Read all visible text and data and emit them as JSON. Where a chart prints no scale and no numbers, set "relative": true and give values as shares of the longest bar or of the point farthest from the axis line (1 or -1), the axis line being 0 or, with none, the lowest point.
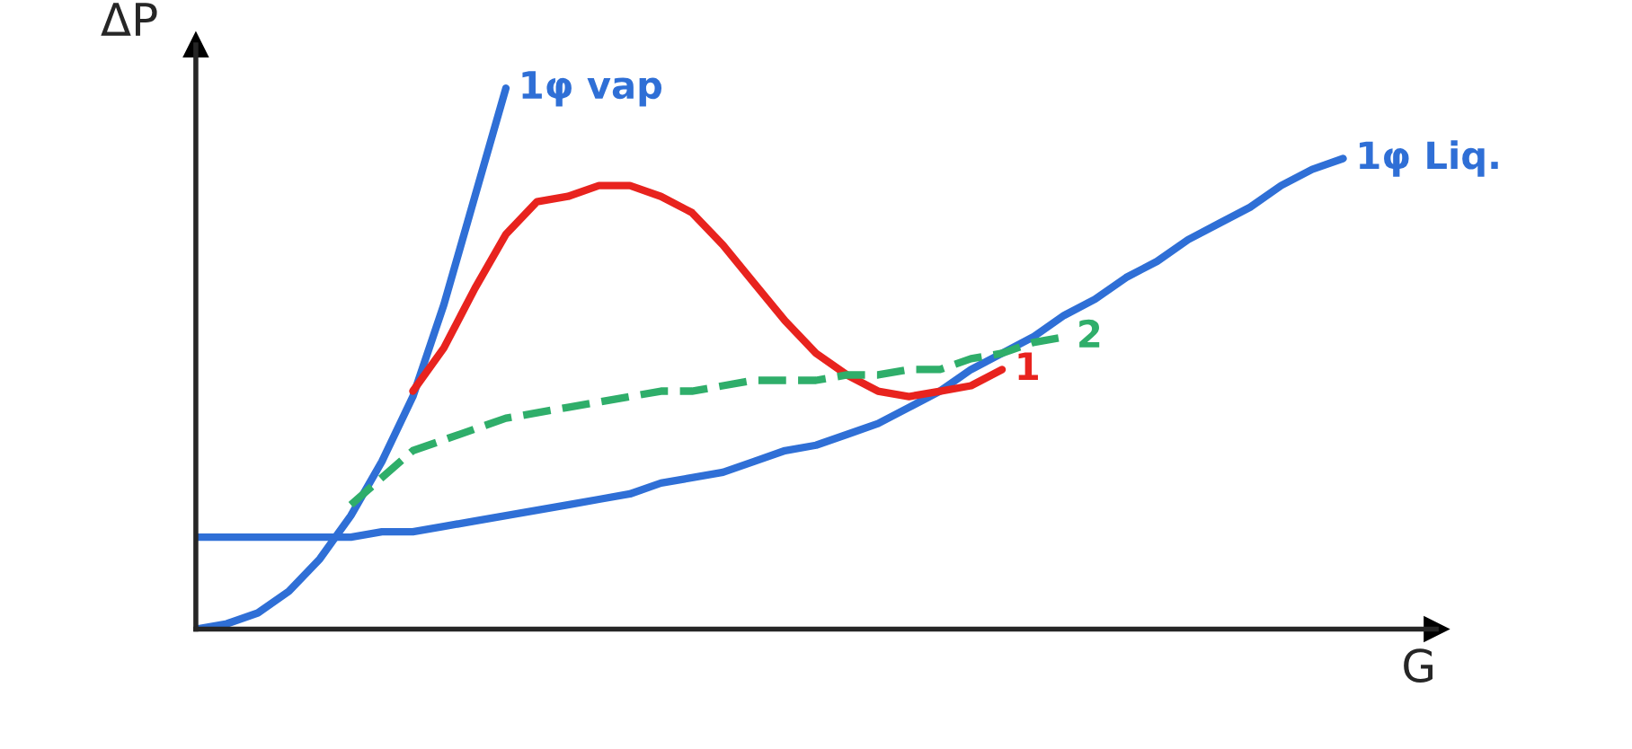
{
  "chart_data": {
    "type": "line",
    "relative": true,
    "xlabel": "G",
    "ylabel": "ΔP",
    "legend": false,
    "marker": "none",
    "categories": [
      null,
      null,
      null,
      null,
      null,
      null,
      null,
      null,
      null,
      null,
      null,
      null,
      null,
      null,
      null,
      null,
      null,
      null,
      null,
      null,
      null,
      null,
      null,
      null,
      null,
      null,
      null,
      null,
      null,
      null,
      null,
      null,
      null,
      null,
      null,
      null,
      null,
      null,
      null,
      null,
      null
    ],
    "series": [
      {
        "name": "1φ vap",
        "color": "#2f6fd6",
        "values": [
          0,
          0.01,
          0.03,
          0.07,
          0.13,
          0.21,
          0.31,
          0.43,
          0.6,
          0.8,
          1,
          null,
          null,
          null,
          null,
          null,
          null,
          null,
          null,
          null,
          null,
          null,
          null,
          null,
          null,
          null,
          null,
          null,
          null,
          null,
          null,
          null,
          null,
          null,
          null,
          null,
          null,
          null,
          null,
          null,
          null
        ]
      },
      {
        "name": "1φ Liq.",
        "color": "#2f6fd6",
        "values": [
          0.17,
          0.17,
          0.17,
          0.17,
          0.17,
          0.17,
          0.18,
          0.18,
          0.19,
          0.2,
          0.21,
          0.22,
          0.23,
          0.24,
          0.25,
          0.27,
          0.28,
          0.29,
          0.31,
          0.33,
          0.34,
          0.36,
          0.38,
          0.41,
          0.44,
          0.48,
          0.51,
          0.54,
          0.58,
          0.61,
          0.65,
          0.68,
          0.72,
          0.75,
          0.78,
          0.82,
          0.85,
          0.87,
          null,
          null,
          null
        ]
      },
      {
        "name": "1",
        "color": "#e8231e",
        "values": [
          null,
          null,
          null,
          null,
          null,
          null,
          null,
          0.44,
          0.52,
          0.63,
          0.73,
          0.79,
          0.8,
          0.82,
          0.82,
          0.8,
          0.77,
          0.71,
          0.64,
          0.57,
          0.51,
          0.47,
          0.44,
          0.43,
          0.44,
          0.45,
          0.48,
          null,
          null,
          null,
          null,
          null,
          null,
          null,
          null,
          null,
          null,
          null,
          null,
          null,
          null
        ]
      },
      {
        "name": "2",
        "color": "#2fae6a",
        "line_style": "dashed",
        "values": [
          null,
          null,
          null,
          null,
          null,
          0.23,
          0.28,
          0.33,
          0.35,
          0.37,
          0.39,
          0.4,
          0.41,
          0.42,
          0.43,
          0.44,
          0.44,
          0.45,
          0.46,
          0.46,
          0.46,
          0.47,
          0.47,
          0.48,
          0.48,
          0.5,
          0.51,
          0.53,
          0.54,
          null,
          null,
          null,
          null,
          null,
          null,
          null,
          null,
          null,
          null,
          null,
          null
        ]
      }
    ]
  }
}
